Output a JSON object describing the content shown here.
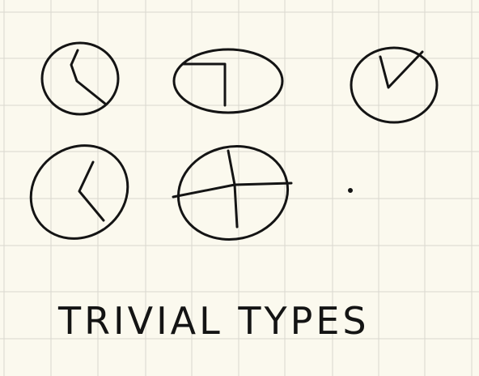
{
  "caption": "TRIVIAL TYPES"
}
